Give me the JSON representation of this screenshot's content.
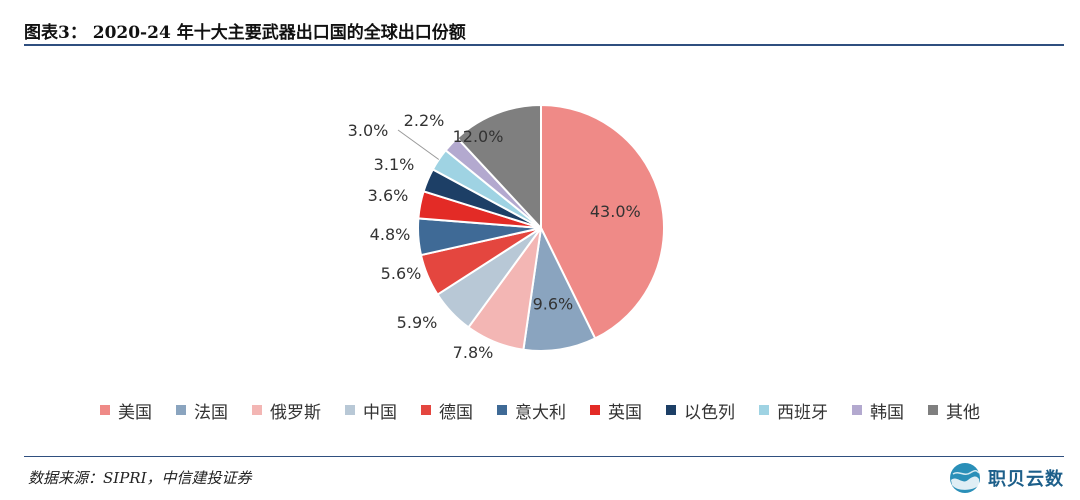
{
  "figure_title": "图表3： 2020-24 年十大主要武器出口国的全球出口份额",
  "source": "数据来源：SIPRI，中信建投证券",
  "brand": {
    "name": "职贝云数",
    "logo_icon": "globe-wave-icon"
  },
  "chart_data": {
    "type": "pie",
    "title": "",
    "unit": "%",
    "legend_position": "bottom",
    "slices": [
      {
        "name": "美国",
        "value": 43.0,
        "label": "43.0%",
        "color": "#ef8a87"
      },
      {
        "name": "法国",
        "value": 9.6,
        "label": "9.6%",
        "color": "#8aa4bf"
      },
      {
        "name": "俄罗斯",
        "value": 7.8,
        "label": "7.8%",
        "color": "#f3b6b4"
      },
      {
        "name": "中国",
        "value": 5.9,
        "label": "5.9%",
        "color": "#b8c8d6"
      },
      {
        "name": "德国",
        "value": 5.6,
        "label": "5.6%",
        "color": "#e4463f"
      },
      {
        "name": "意大利",
        "value": 4.8,
        "label": "4.8%",
        "color": "#3f6a96"
      },
      {
        "name": "英国",
        "value": 3.6,
        "label": "3.6%",
        "color": "#e32b26"
      },
      {
        "name": "以色列",
        "value": 3.1,
        "label": "3.1%",
        "color": "#1d3f66"
      },
      {
        "name": "西班牙",
        "value": 3.0,
        "label": "3.0%",
        "color": "#9fd3e3"
      },
      {
        "name": "韩国",
        "value": 2.2,
        "label": "2.2%",
        "color": "#b3a9cf"
      },
      {
        "name": "其他",
        "value": 12.0,
        "label": "12.0%",
        "color": "#7f7f7f"
      }
    ]
  }
}
